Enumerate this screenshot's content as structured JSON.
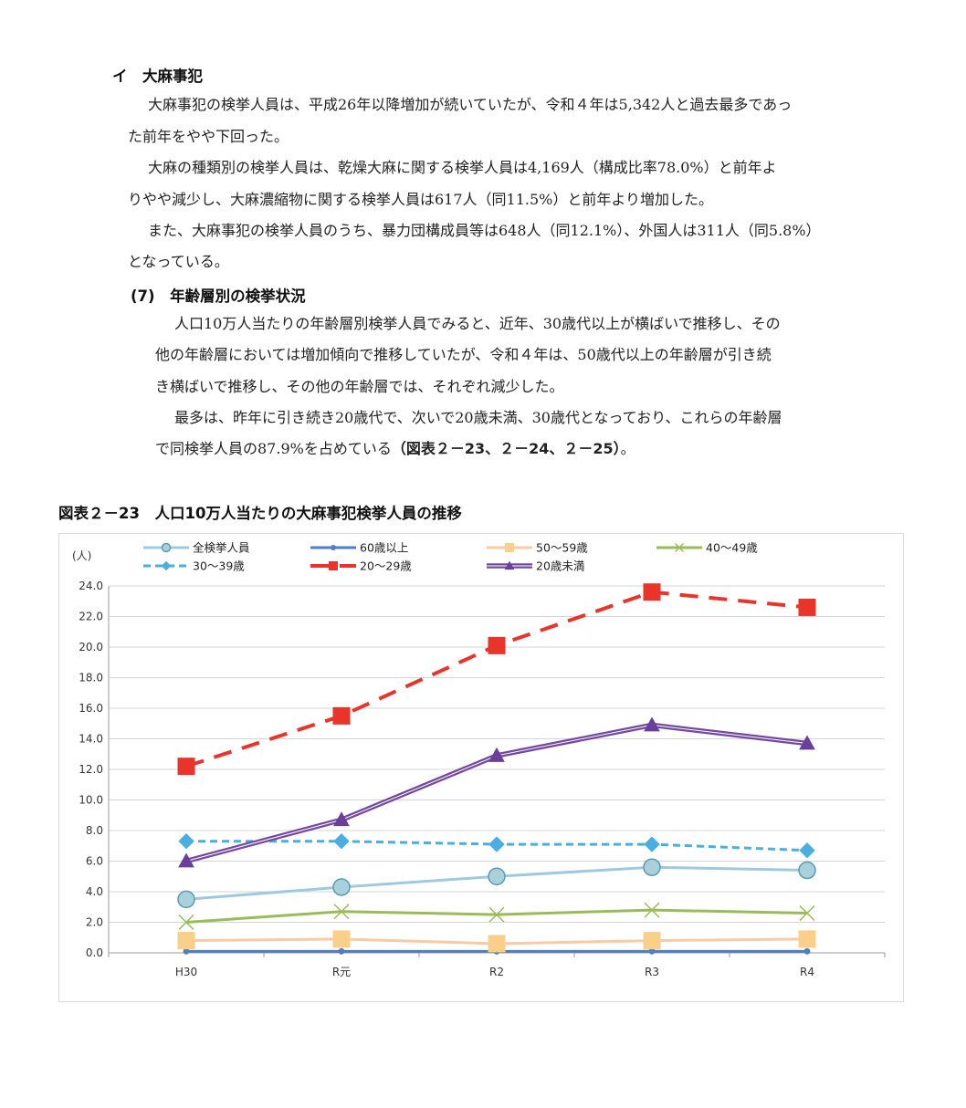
{
  "section_a": {
    "heading": "イ　大麻事犯",
    "para1_l1": "大麻事犯の検挙人員は、平成26年以降増加が続いていたが、令和４年は5,342人と過去最多であっ",
    "para1_l2": "た前年をやや下回った。",
    "para2_l1": "大麻の種類別の検挙人員は、乾燥大麻に関する検挙人員は4,169人（構成比率78.0%）と前年よ",
    "para2_l2": "りやや減少し、大麻濃縮物に関する検挙人員は617人（同11.5%）と前年より増加した。",
    "para3_l1": "また、大麻事犯の検挙人員のうち、暴力団構成員等は648人（同12.1%）、外国人は311人（同5.8%）",
    "para3_l2": "となっている。"
  },
  "section_b": {
    "heading": "(7)　年齢層別の検挙状況",
    "para1_l1": "人口10万人当たりの年齢層別検挙人員でみると、近年、30歳代以上が横ばいで推移し、その",
    "para1_l2": "他の年齢層においては増加傾向で推移していたが、令和４年は、50歳代以上の年齢層が引き続",
    "para1_l3": "き横ばいで推移し、その他の年齢層では、それぞれ減少した。",
    "para2_l1": "最多は、昨年に引き続き20歳代で、次いで20歳未満、30歳代となっており、これらの年齢層",
    "para2_l2_a": "で同検挙人員の87.9%を占めている",
    "para2_l2_b": "（図表２－23、２－24、２－25）",
    "para2_l2_c": "。"
  },
  "figure_title": "図表２－23　人口10万人当たりの大麻事犯検挙人員の推移",
  "chart_data": {
    "type": "line",
    "ylabel": "(人)",
    "ylim": [
      0,
      24
    ],
    "ytick_step": 2,
    "ytick_labels": [
      "0.0",
      "2.0",
      "4.0",
      "6.0",
      "8.0",
      "10.0",
      "12.0",
      "14.0",
      "16.0",
      "18.0",
      "20.0",
      "22.0",
      "24.0"
    ],
    "grid": true,
    "legend_position": "top",
    "categories": [
      "H30",
      "R元",
      "R2",
      "R3",
      "R4"
    ],
    "series": [
      {
        "name": "全検挙人員",
        "values": [
          3.5,
          4.3,
          5.0,
          5.6,
          5.4
        ],
        "color": "#9ecae1",
        "marker_fill": "#a9d1dc",
        "marker_stroke": "#5b9bb0",
        "marker": "circle",
        "dash": "solid",
        "style": "single"
      },
      {
        "name": "60歳以上",
        "values": [
          0.1,
          0.1,
          0.1,
          0.1,
          0.1
        ],
        "color": "#4f7fbf",
        "marker_fill": "#4f7fbf",
        "marker_stroke": "#4f7fbf",
        "marker": "dot",
        "dash": "solid",
        "style": "single"
      },
      {
        "name": "50～59歳",
        "values": [
          0.8,
          0.9,
          0.6,
          0.8,
          0.9
        ],
        "color": "#f7cba6",
        "marker_fill": "#f9cf89",
        "marker_stroke": "#f9cf89",
        "marker": "square",
        "dash": "solid",
        "style": "single"
      },
      {
        "name": "40～49歳",
        "values": [
          2.0,
          2.7,
          2.5,
          2.8,
          2.6
        ],
        "color": "#9bbb59",
        "marker_fill": "none",
        "marker_stroke": "#9bbb59",
        "marker": "x",
        "dash": "solid",
        "style": "single"
      },
      {
        "name": "30～39歳",
        "values": [
          7.3,
          7.3,
          7.1,
          7.1,
          6.7
        ],
        "color": "#4baee0",
        "marker_fill": "#4baee0",
        "marker_stroke": "#4baee0",
        "marker": "diamond",
        "dash": "short",
        "style": "single"
      },
      {
        "name": "20～29歳",
        "values": [
          12.2,
          15.5,
          20.1,
          23.6,
          22.6
        ],
        "color": "#e8342b",
        "marker_fill": "#e8342b",
        "marker_stroke": "#e8342b",
        "marker": "square",
        "dash": "long",
        "style": "single"
      },
      {
        "name": "20歳未満",
        "values": [
          6.0,
          8.7,
          12.9,
          14.9,
          13.7
        ],
        "color": "#7448a0",
        "marker_fill": "#6a3f9a",
        "marker_stroke": "#6a3f9a",
        "marker": "triangle",
        "dash": "solid",
        "style": "double"
      }
    ]
  }
}
